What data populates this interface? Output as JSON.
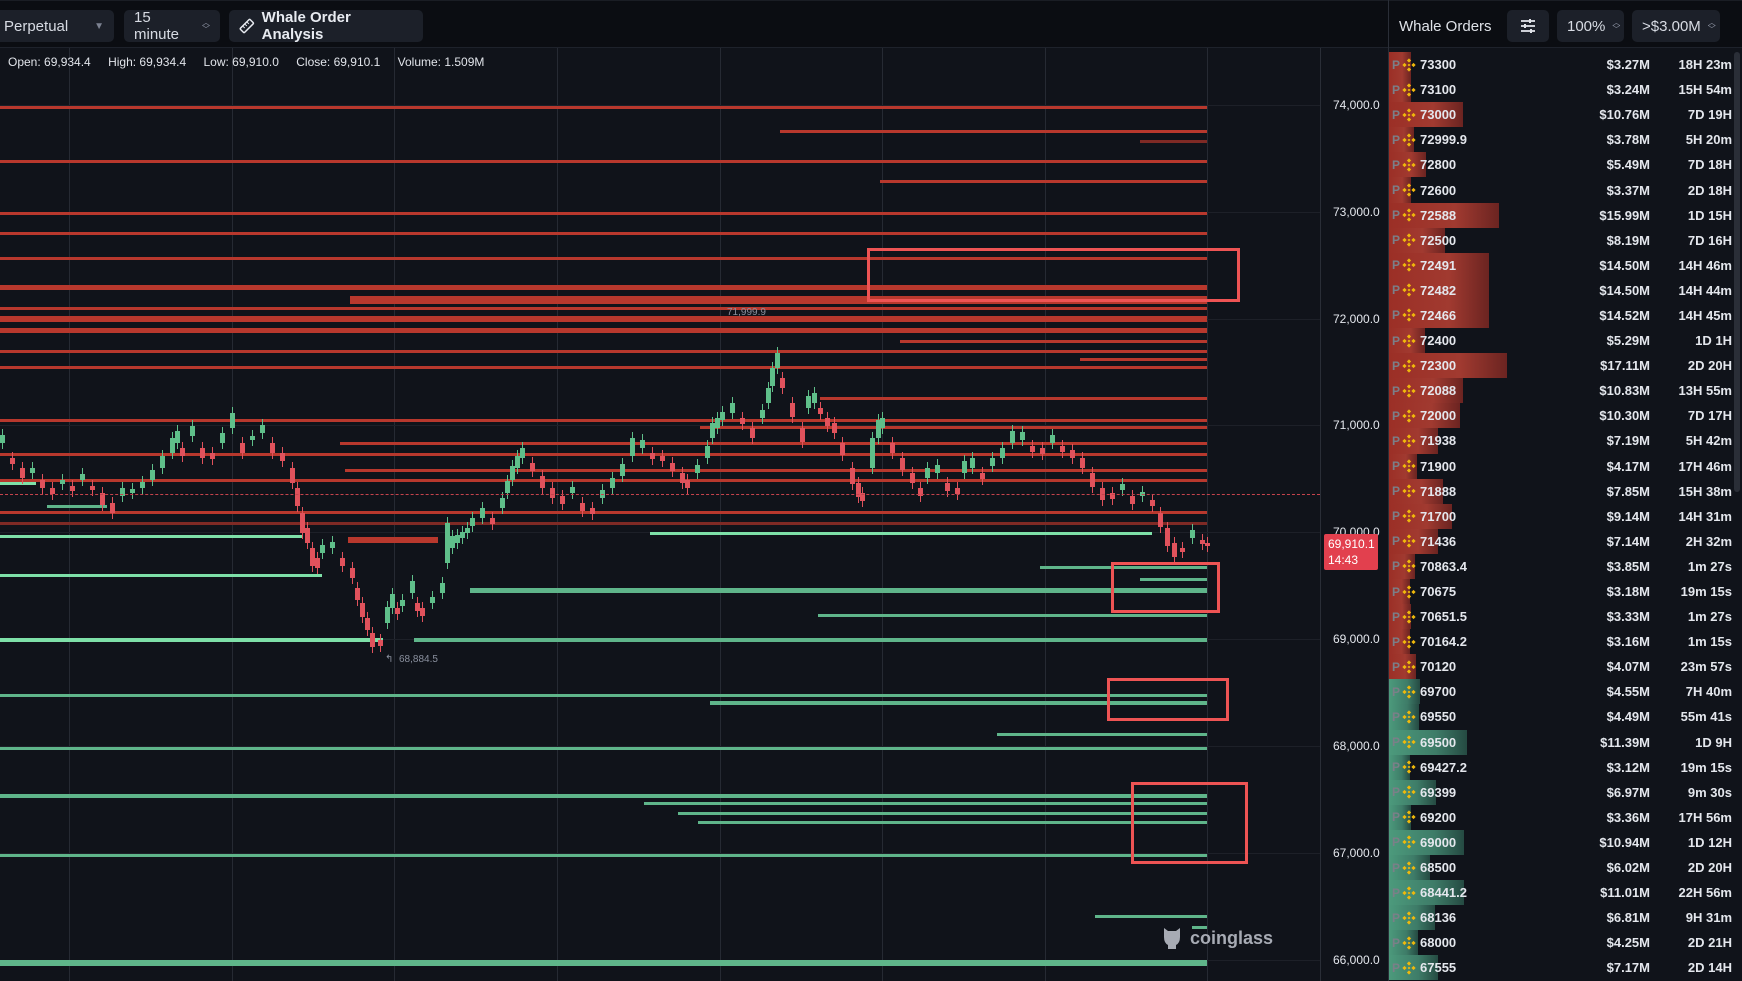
{
  "toolbar": {
    "market_select": "Perpetual",
    "interval_select": "15 minute",
    "analysis_button": "Whale Order Analysis"
  },
  "ohlc": {
    "open": "Open: 69,934.4",
    "high": "High: 69,934.4",
    "low": "Low: 69,910.0",
    "close": "Close: 69,910.1",
    "volume": "Volume: 1.509M"
  },
  "chart": {
    "high_note": "71,999.9",
    "low_note": "68,884.5",
    "current_price": "69,910.1",
    "countdown": "14:43",
    "watermark": "coinglass",
    "colors": {
      "ask": "#b8382d",
      "bid": "#5fb58a",
      "up": "#5fbf8a",
      "down": "#e0525c",
      "highlight": "#ee5454",
      "bg": "#10131a"
    }
  },
  "price_axis": [
    "74,000.0",
    "73,000.0",
    "72,000.0",
    "71,000.0",
    "70,000.0",
    "69,000.0",
    "68,000.0",
    "67,000.0",
    "66,000.0"
  ],
  "panel": {
    "title": "Whale Orders",
    "filter_icon": "sliders-icon",
    "zoom_select": "100%",
    "threshold_select": ">$3.00M",
    "orders": [
      {
        "side": "ask",
        "price": "73300",
        "amount": "$3.27M",
        "age": "18H 23m",
        "bar": 22
      },
      {
        "side": "ask",
        "price": "73100",
        "amount": "$3.24M",
        "age": "15H 54m",
        "bar": 22
      },
      {
        "side": "ask",
        "price": "73000",
        "amount": "$10.76M",
        "age": "7D 19H",
        "bar": 74
      },
      {
        "side": "ask",
        "price": "72999.9",
        "amount": "$3.78M",
        "age": "5H 20m",
        "bar": 25
      },
      {
        "side": "ask",
        "price": "72800",
        "amount": "$5.49M",
        "age": "7D 18H",
        "bar": 37
      },
      {
        "side": "ask",
        "price": "72600",
        "amount": "$3.37M",
        "age": "2D 18H",
        "bar": 22
      },
      {
        "side": "ask",
        "price": "72588",
        "amount": "$15.99M",
        "age": "1D 15H",
        "bar": 110
      },
      {
        "side": "ask",
        "price": "72500",
        "amount": "$8.19M",
        "age": "7D 16H",
        "bar": 56
      },
      {
        "side": "ask",
        "price": "72491",
        "amount": "$14.50M",
        "age": "14H 46m",
        "bar": 100
      },
      {
        "side": "ask",
        "price": "72482",
        "amount": "$14.50M",
        "age": "14H 44m",
        "bar": 100
      },
      {
        "side": "ask",
        "price": "72466",
        "amount": "$14.52M",
        "age": "14H 45m",
        "bar": 100
      },
      {
        "side": "ask",
        "price": "72400",
        "amount": "$5.29M",
        "age": "1D 1H",
        "bar": 36
      },
      {
        "side": "ask",
        "price": "72300",
        "amount": "$17.11M",
        "age": "2D 20H",
        "bar": 118
      },
      {
        "side": "ask",
        "price": "72088",
        "amount": "$10.83M",
        "age": "13H 55m",
        "bar": 74
      },
      {
        "side": "ask",
        "price": "72000",
        "amount": "$10.30M",
        "age": "7D 17H",
        "bar": 71
      },
      {
        "side": "ask",
        "price": "71938",
        "amount": "$7.19M",
        "age": "5H 42m",
        "bar": 49
      },
      {
        "side": "ask",
        "price": "71900",
        "amount": "$4.17M",
        "age": "17H 46m",
        "bar": 28
      },
      {
        "side": "ask",
        "price": "71888",
        "amount": "$7.85M",
        "age": "15H 38m",
        "bar": 54
      },
      {
        "side": "ask",
        "price": "71700",
        "amount": "$9.14M",
        "age": "14H 31m",
        "bar": 63
      },
      {
        "side": "ask",
        "price": "71436",
        "amount": "$7.14M",
        "age": "2H 32m",
        "bar": 49
      },
      {
        "side": "ask",
        "price": "70863.4",
        "amount": "$3.85M",
        "age": "1m 27s",
        "bar": 26
      },
      {
        "side": "ask",
        "price": "70675",
        "amount": "$3.18M",
        "age": "19m 15s",
        "bar": 21
      },
      {
        "side": "ask",
        "price": "70651.5",
        "amount": "$3.33M",
        "age": "1m 27s",
        "bar": 22
      },
      {
        "side": "ask",
        "price": "70164.2",
        "amount": "$3.16M",
        "age": "1m 15s",
        "bar": 21
      },
      {
        "side": "ask",
        "price": "70120",
        "amount": "$4.07M",
        "age": "23m 57s",
        "bar": 27
      },
      {
        "side": "bid",
        "price": "69700",
        "amount": "$4.55M",
        "age": "7H 40m",
        "bar": 31
      },
      {
        "side": "bid",
        "price": "69550",
        "amount": "$4.49M",
        "age": "55m 41s",
        "bar": 30
      },
      {
        "side": "bid",
        "price": "69500",
        "amount": "$11.39M",
        "age": "1D 9H",
        "bar": 78
      },
      {
        "side": "bid",
        "price": "69427.2",
        "amount": "$3.12M",
        "age": "19m 15s",
        "bar": 21
      },
      {
        "side": "bid",
        "price": "69399",
        "amount": "$6.97M",
        "age": "9m 30s",
        "bar": 47
      },
      {
        "side": "bid",
        "price": "69200",
        "amount": "$3.36M",
        "age": "17H 56m",
        "bar": 22
      },
      {
        "side": "bid",
        "price": "69000",
        "amount": "$10.94M",
        "age": "1D 12H",
        "bar": 75
      },
      {
        "side": "bid",
        "price": "68500",
        "amount": "$6.02M",
        "age": "2D 20H",
        "bar": 41
      },
      {
        "side": "bid",
        "price": "68441.2",
        "amount": "$11.01M",
        "age": "22H 56m",
        "bar": 75
      },
      {
        "side": "bid",
        "price": "68136",
        "amount": "$6.81M",
        "age": "9H 31m",
        "bar": 46
      },
      {
        "side": "bid",
        "price": "68000",
        "amount": "$4.25M",
        "age": "2D 21H",
        "bar": 29
      },
      {
        "side": "bid",
        "price": "67555",
        "amount": "$7.17M",
        "age": "2D 14H",
        "bar": 49
      }
    ]
  }
}
